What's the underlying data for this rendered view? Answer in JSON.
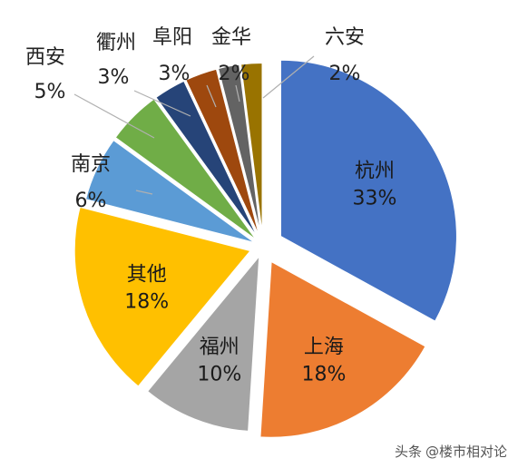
{
  "chart_data": {
    "type": "pie",
    "exploded": true,
    "slices": [
      {
        "name": "杭州",
        "value": 33,
        "label": "33%",
        "color": "#4472c4"
      },
      {
        "name": "上海",
        "value": 18,
        "label": "18%",
        "color": "#ed7d31"
      },
      {
        "name": "福州",
        "value": 10,
        "label": "10%",
        "color": "#a5a5a5"
      },
      {
        "name": "其他",
        "value": 18,
        "label": "18%",
        "color": "#ffc000"
      },
      {
        "name": "南京",
        "value": 6,
        "label": "6%",
        "color": "#5b9bd5"
      },
      {
        "name": "西安",
        "value": 5,
        "label": "5%",
        "color": "#70ad47"
      },
      {
        "name": "衢州",
        "value": 3,
        "label": "3%",
        "color": "#264478"
      },
      {
        "name": "阜阳",
        "value": 3,
        "label": "3%",
        "color": "#9e480e"
      },
      {
        "name": "金华",
        "value": 2,
        "label": "2%",
        "color": "#636363"
      },
      {
        "name": "六安",
        "value": 2,
        "label": "2%",
        "color": "#997300"
      }
    ]
  },
  "watermark": {
    "prefix": "头条",
    "handle": "@楼市相对论"
  }
}
